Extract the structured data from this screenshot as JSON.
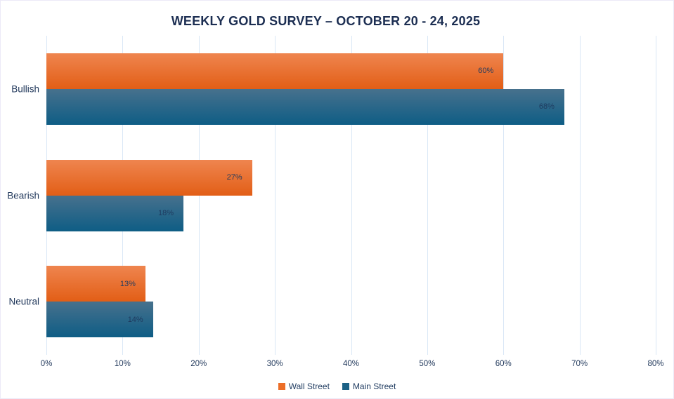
{
  "chart_data": {
    "type": "bar",
    "orientation": "horizontal",
    "title": "WEEKLY GOLD SURVEY – OCTOBER 20 - 24, 2025",
    "categories": [
      "Bullish",
      "Bearish",
      "Neutral"
    ],
    "series": [
      {
        "name": "Wall Street",
        "color": "#ec6e28",
        "gradient_top": "#ef854f",
        "gradient_bottom": "#e25e16",
        "values": [
          60,
          27,
          13
        ]
      },
      {
        "name": "Main Street",
        "color": "#1c6286",
        "gradient_top": "#47718d",
        "gradient_bottom": "#0e5d85",
        "values": [
          68,
          18,
          14
        ]
      }
    ],
    "value_suffix": "%",
    "data_labels": [
      "60%",
      "68%",
      "27%",
      "18%",
      "13%",
      "14%"
    ],
    "xlim": [
      0,
      80
    ],
    "x_tick_step": 10,
    "x_tick_labels": [
      "0%",
      "10%",
      "20%",
      "30%",
      "40%",
      "50%",
      "60%",
      "70%",
      "80%"
    ],
    "xlabel": "",
    "ylabel": "",
    "grid": "vertical-only",
    "gridline_color": "#d9e7f6",
    "legend_position": "bottom-center",
    "text_color": "#1e3a5f"
  }
}
